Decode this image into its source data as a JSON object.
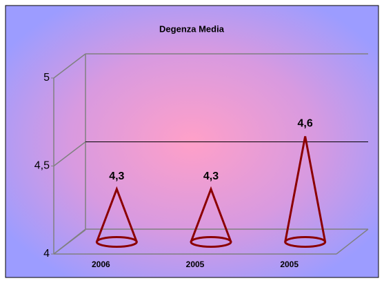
{
  "chart_data": {
    "type": "cone",
    "title": "Degenza Media",
    "categories": [
      "2006",
      "2005",
      "2005"
    ],
    "values": [
      4.3,
      4.3,
      4.6
    ],
    "value_labels": [
      "4,3",
      "4,3",
      "4,6"
    ],
    "color": "#8b0000",
    "ylim": [
      4,
      5
    ],
    "yticks": [
      4,
      {
        "value": 4.5,
        "label": "4,5"
      },
      5
    ],
    "grid": true
  }
}
